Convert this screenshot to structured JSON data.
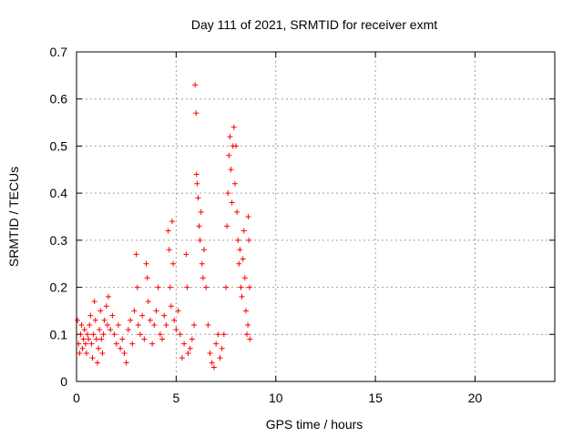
{
  "chart_data": {
    "type": "scatter",
    "title": "Day 111 of 2021, SRMTID for receiver exmt",
    "xlabel": "GPS time / hours",
    "ylabel": "SRMTID / TECUs",
    "xlim": [
      0,
      24
    ],
    "ylim": [
      0,
      0.7
    ],
    "xticks": [
      0,
      5,
      10,
      15,
      20
    ],
    "xtick_labels": [
      "0",
      "5",
      "10",
      "15",
      "20"
    ],
    "yticks": [
      0,
      0.1,
      0.2,
      0.3,
      0.4,
      0.5,
      0.6,
      0.7
    ],
    "ytick_labels": [
      "0",
      "0.1",
      "0.2",
      "0.3",
      "0.4",
      "0.5",
      "0.6",
      "0.7"
    ],
    "grid": true,
    "marker": "plus",
    "color": "#ff0000",
    "series": [
      {
        "name": "SRMTID",
        "points": [
          [
            0.05,
            0.13
          ],
          [
            0.1,
            0.08
          ],
          [
            0.15,
            0.06
          ],
          [
            0.2,
            0.1
          ],
          [
            0.25,
            0.12
          ],
          [
            0.3,
            0.07
          ],
          [
            0.35,
            0.09
          ],
          [
            0.4,
            0.11
          ],
          [
            0.45,
            0.08
          ],
          [
            0.5,
            0.06
          ],
          [
            0.55,
            0.1
          ],
          [
            0.6,
            0.09
          ],
          [
            0.65,
            0.12
          ],
          [
            0.7,
            0.14
          ],
          [
            0.75,
            0.08
          ],
          [
            0.8,
            0.05
          ],
          [
            0.85,
            0.1
          ],
          [
            0.9,
            0.17
          ],
          [
            0.95,
            0.13
          ],
          [
            1.0,
            0.09
          ],
          [
            1.05,
            0.04
          ],
          [
            1.1,
            0.07
          ],
          [
            1.15,
            0.11
          ],
          [
            1.2,
            0.15
          ],
          [
            1.25,
            0.09
          ],
          [
            1.3,
            0.06
          ],
          [
            1.35,
            0.1
          ],
          [
            1.4,
            0.13
          ],
          [
            1.5,
            0.16
          ],
          [
            1.55,
            0.12
          ],
          [
            1.6,
            0.18
          ],
          [
            1.7,
            0.11
          ],
          [
            1.8,
            0.14
          ],
          [
            1.9,
            0.1
          ],
          [
            2.0,
            0.08
          ],
          [
            2.1,
            0.12
          ],
          [
            2.2,
            0.07
          ],
          [
            2.3,
            0.09
          ],
          [
            2.4,
            0.06
          ],
          [
            2.5,
            0.04
          ],
          [
            2.6,
            0.11
          ],
          [
            2.7,
            0.13
          ],
          [
            2.8,
            0.08
          ],
          [
            2.9,
            0.15
          ],
          [
            3.0,
            0.27
          ],
          [
            3.05,
            0.2
          ],
          [
            3.1,
            0.12
          ],
          [
            3.2,
            0.1
          ],
          [
            3.3,
            0.14
          ],
          [
            3.4,
            0.09
          ],
          [
            3.5,
            0.25
          ],
          [
            3.55,
            0.22
          ],
          [
            3.6,
            0.17
          ],
          [
            3.7,
            0.13
          ],
          [
            3.8,
            0.08
          ],
          [
            3.9,
            0.12
          ],
          [
            4.0,
            0.15
          ],
          [
            4.1,
            0.2
          ],
          [
            4.2,
            0.1
          ],
          [
            4.3,
            0.09
          ],
          [
            4.4,
            0.14
          ],
          [
            4.5,
            0.12
          ],
          [
            4.6,
            0.32
          ],
          [
            4.65,
            0.28
          ],
          [
            4.7,
            0.2
          ],
          [
            4.75,
            0.16
          ],
          [
            4.8,
            0.34
          ],
          [
            4.85,
            0.25
          ],
          [
            4.9,
            0.13
          ],
          [
            5.0,
            0.11
          ],
          [
            5.1,
            0.15
          ],
          [
            5.2,
            0.1
          ],
          [
            5.3,
            0.05
          ],
          [
            5.4,
            0.08
          ],
          [
            5.5,
            0.27
          ],
          [
            5.55,
            0.2
          ],
          [
            5.6,
            0.06
          ],
          [
            5.7,
            0.07
          ],
          [
            5.8,
            0.09
          ],
          [
            5.9,
            0.12
          ],
          [
            5.95,
            0.63
          ],
          [
            6.0,
            0.57
          ],
          [
            6.02,
            0.44
          ],
          [
            6.05,
            0.42
          ],
          [
            6.1,
            0.39
          ],
          [
            6.15,
            0.33
          ],
          [
            6.2,
            0.3
          ],
          [
            6.25,
            0.36
          ],
          [
            6.3,
            0.25
          ],
          [
            6.35,
            0.22
          ],
          [
            6.4,
            0.28
          ],
          [
            6.5,
            0.2
          ],
          [
            6.6,
            0.12
          ],
          [
            6.7,
            0.06
          ],
          [
            6.8,
            0.04
          ],
          [
            6.9,
            0.03
          ],
          [
            7.0,
            0.08
          ],
          [
            7.1,
            0.1
          ],
          [
            7.2,
            0.05
          ],
          [
            7.3,
            0.07
          ],
          [
            7.4,
            0.1
          ],
          [
            7.5,
            0.2
          ],
          [
            7.55,
            0.33
          ],
          [
            7.6,
            0.4
          ],
          [
            7.65,
            0.48
          ],
          [
            7.7,
            0.52
          ],
          [
            7.75,
            0.45
          ],
          [
            7.8,
            0.38
          ],
          [
            7.85,
            0.5
          ],
          [
            7.9,
            0.54
          ],
          [
            7.95,
            0.42
          ],
          [
            8.0,
            0.5
          ],
          [
            8.05,
            0.36
          ],
          [
            8.1,
            0.3
          ],
          [
            8.15,
            0.25
          ],
          [
            8.2,
            0.28
          ],
          [
            8.25,
            0.2
          ],
          [
            8.3,
            0.18
          ],
          [
            8.35,
            0.26
          ],
          [
            8.4,
            0.32
          ],
          [
            8.45,
            0.22
          ],
          [
            8.5,
            0.15
          ],
          [
            8.55,
            0.1
          ],
          [
            8.6,
            0.12
          ],
          [
            8.62,
            0.35
          ],
          [
            8.65,
            0.3
          ],
          [
            8.68,
            0.2
          ],
          [
            8.7,
            0.09
          ]
        ]
      }
    ]
  }
}
